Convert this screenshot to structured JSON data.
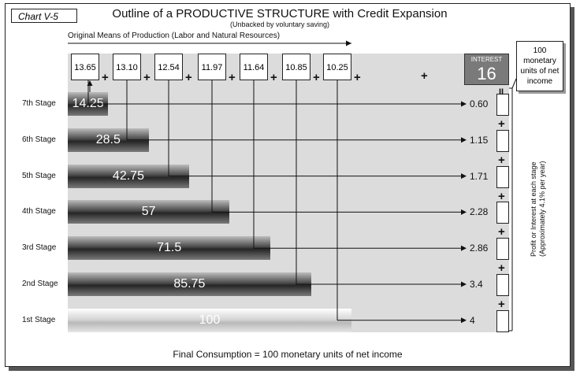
{
  "chart_tag": "Chart V-5",
  "title": "Outline of a PRODUCTIVE STRUCTURE with Credit Expansion",
  "subtitle": "(Unbacked by voluntary saving)",
  "means_label": "Original Means of Production (Labor and Natural Resources)",
  "means_values": [
    "13.65",
    "13.10",
    "12.54",
    "11.97",
    "11.64",
    "10.85",
    "10.25"
  ],
  "plus": "+",
  "interest": {
    "label": "INTEREST",
    "value": "16"
  },
  "income_box": "100 monetary units of net income",
  "equals": "II",
  "vertical_note_line1": "Profit or Interest at each stage",
  "vertical_note_line2": "(Approximately 4.1% per year)",
  "final_consumption": "Final Consumption = 100   monetary units of net income",
  "chart_data": {
    "type": "bar",
    "orientation": "horizontal",
    "categories": [
      "7th Stage",
      "6th Stage",
      "5th Stage",
      "4th Stage",
      "3rd Stage",
      "2nd Stage",
      "1st Stage"
    ],
    "values": [
      14.25,
      28.5,
      42.75,
      57,
      71.5,
      85.75,
      100
    ],
    "value_labels": [
      "14.25",
      "28.5",
      "42.75",
      "57",
      "71.5",
      "85.75",
      "100"
    ],
    "profit": [
      "0.60",
      "1.15",
      "1.71",
      "2.28",
      "2.86",
      "3.4",
      "4"
    ],
    "xlim": [
      0,
      100
    ]
  }
}
